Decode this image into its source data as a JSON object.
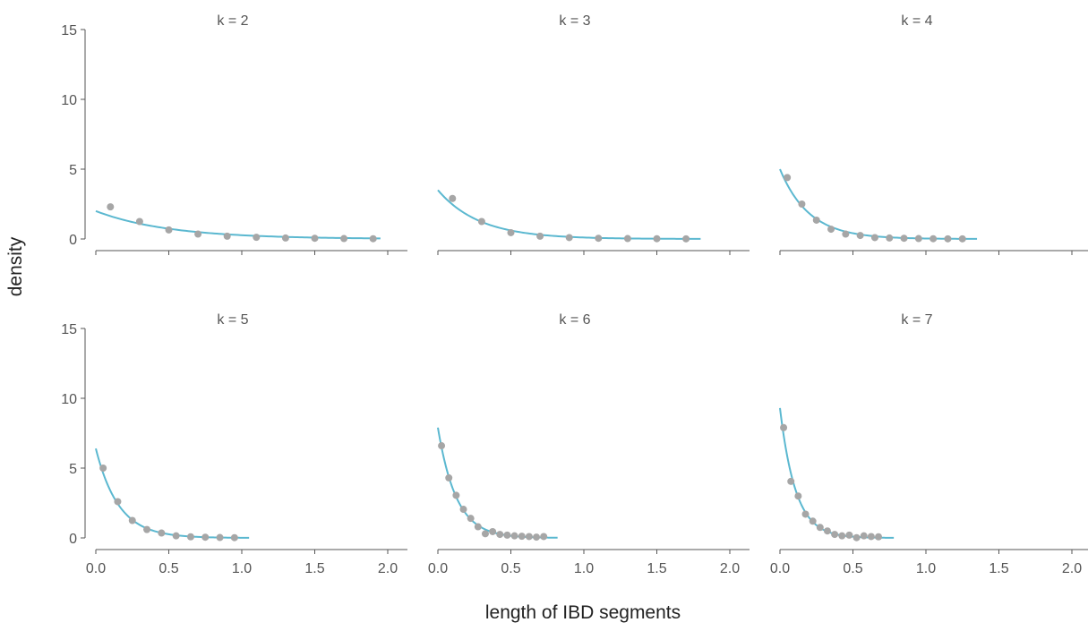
{
  "chart_data": {
    "type": "scatter",
    "xlabel": "length of IBD segments",
    "ylabel": "density",
    "xlim": [
      0,
      2
    ],
    "ylim": [
      0,
      15
    ],
    "x_ticks": [
      "0.0",
      "0.5",
      "1.0",
      "1.5",
      "2.0"
    ],
    "y_ticks": [
      "0",
      "5",
      "10",
      "15"
    ],
    "grid": false,
    "colors": {
      "points": "#a6a6a6",
      "curve": "#5bb8d0",
      "axis": "#555555",
      "text": "#555555"
    },
    "panels": [
      {
        "title": "k = 2",
        "points": {
          "x": [
            0.1,
            0.3,
            0.5,
            0.7,
            0.9,
            1.1,
            1.3,
            1.5,
            1.7,
            1.9
          ],
          "y": [
            2.3,
            1.25,
            0.65,
            0.35,
            0.2,
            0.12,
            0.07,
            0.05,
            0.03,
            0.02
          ]
        },
        "curve": {
          "rate": 2.0,
          "x_max": 1.95
        }
      },
      {
        "title": "k = 3",
        "points": {
          "x": [
            0.1,
            0.3,
            0.5,
            0.7,
            0.9,
            1.1,
            1.3,
            1.5,
            1.7
          ],
          "y": [
            2.9,
            1.25,
            0.45,
            0.2,
            0.1,
            0.05,
            0.03,
            0.02,
            0.01
          ]
        },
        "curve": {
          "rate": 3.5,
          "x_max": 1.8
        }
      },
      {
        "title": "k = 4",
        "points": {
          "x": [
            0.05,
            0.15,
            0.25,
            0.35,
            0.45,
            0.55,
            0.65,
            0.75,
            0.85,
            0.95,
            1.05,
            1.15,
            1.25
          ],
          "y": [
            4.4,
            2.5,
            1.35,
            0.7,
            0.35,
            0.25,
            0.1,
            0.07,
            0.05,
            0.03,
            0.02,
            0.01,
            0.01
          ]
        },
        "curve": {
          "rate": 5.0,
          "x_max": 1.35
        }
      },
      {
        "title": "k = 5",
        "points": {
          "x": [
            0.05,
            0.15,
            0.25,
            0.35,
            0.45,
            0.55,
            0.65,
            0.75,
            0.85,
            0.95
          ],
          "y": [
            5.0,
            2.6,
            1.25,
            0.6,
            0.35,
            0.15,
            0.08,
            0.05,
            0.03,
            0.02
          ]
        },
        "curve": {
          "rate": 6.4,
          "x_max": 1.05
        }
      },
      {
        "title": "k = 6",
        "points": {
          "x": [
            0.025,
            0.075,
            0.125,
            0.175,
            0.225,
            0.275,
            0.325,
            0.375,
            0.425,
            0.475,
            0.525,
            0.575,
            0.625,
            0.675,
            0.725
          ],
          "y": [
            6.6,
            4.3,
            3.05,
            2.05,
            1.4,
            0.8,
            0.3,
            0.45,
            0.25,
            0.2,
            0.15,
            0.12,
            0.1,
            0.06,
            0.1
          ]
        },
        "curve": {
          "rate": 7.9,
          "x_max": 0.82
        }
      },
      {
        "title": "k = 7",
        "points": {
          "x": [
            0.025,
            0.075,
            0.125,
            0.175,
            0.225,
            0.275,
            0.325,
            0.375,
            0.425,
            0.475,
            0.525,
            0.575,
            0.625,
            0.675
          ],
          "y": [
            7.9,
            4.05,
            3.0,
            1.7,
            1.2,
            0.75,
            0.5,
            0.25,
            0.15,
            0.2,
            0.02,
            0.15,
            0.1,
            0.08
          ]
        },
        "curve": {
          "rate": 9.3,
          "x_max": 0.78
        }
      }
    ]
  }
}
